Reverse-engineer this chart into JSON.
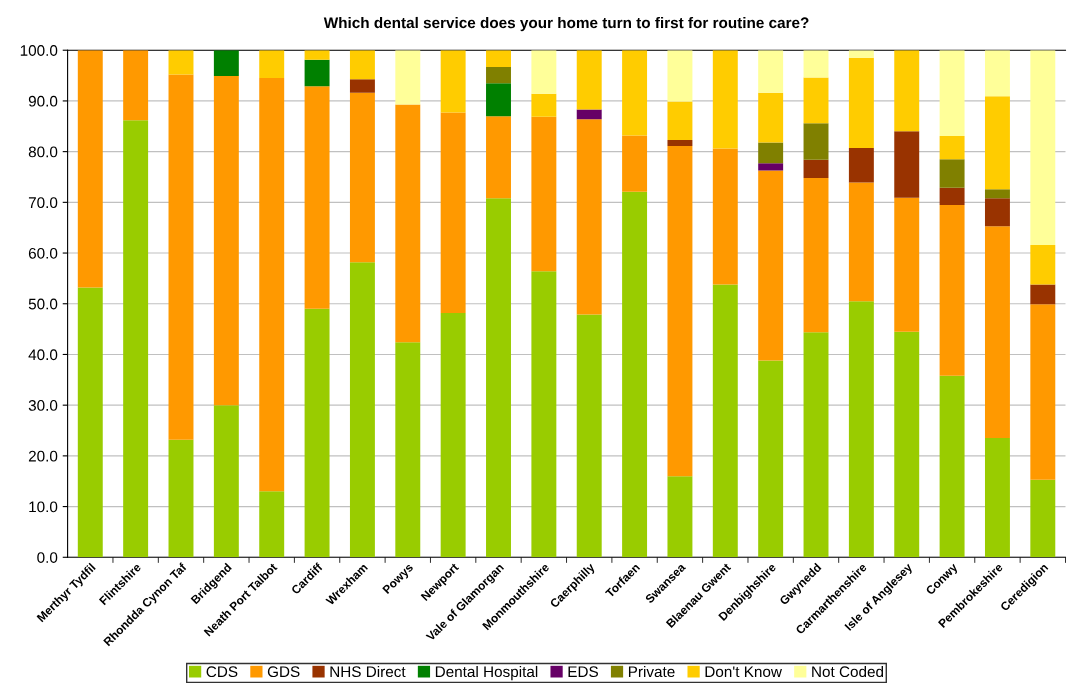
{
  "chart_data": {
    "type": "bar",
    "title": "Which dental service does your home turn to first for routine care?",
    "categories": [
      "Merthyr Tydfil",
      "Flintshire",
      "Rhondda Cynon Taf",
      "Bridgend",
      "Neath Port Talbot",
      "Cardiff",
      "Wrexham",
      "Powys",
      "Newport",
      "Vale of Glamorgan",
      "Monmouthshire",
      "Caerphilly",
      "Torfaen",
      "Swansea",
      "Blaenau Gwent",
      "Denbighshire",
      "Gwynedd",
      "Carmarthenshire",
      "Isle of Anglesey",
      "Conwy",
      "Pembrokeshire",
      "Ceredigion"
    ],
    "stacked": true,
    "series": [
      {
        "name": "CDS",
        "color": "#99cc00",
        "values": [
          53.2,
          86.2,
          23.2,
          30.0,
          13.0,
          49.0,
          58.2,
          42.4,
          48.2,
          70.8,
          56.4,
          47.9,
          72.1,
          16.0,
          53.8,
          38.8,
          44.4,
          50.5,
          44.5,
          35.8,
          23.5,
          15.3
        ]
      },
      {
        "name": "GDS",
        "color": "#ff9900",
        "values": [
          46.8,
          13.8,
          72.0,
          64.9,
          81.5,
          43.9,
          33.4,
          46.9,
          39.5,
          16.2,
          30.5,
          38.5,
          11.1,
          65.1,
          26.8,
          37.5,
          30.4,
          23.4,
          26.4,
          33.7,
          41.8,
          34.6
        ]
      },
      {
        "name": "NHS Direct",
        "color": "#993300",
        "values": [
          0,
          0,
          0,
          0,
          0,
          0,
          2.7,
          0,
          0,
          0,
          0,
          0,
          0,
          1.2,
          0,
          0,
          3.6,
          6.8,
          13.1,
          3.4,
          5.5,
          3.9
        ]
      },
      {
        "name": "Dental Hospital",
        "color": "#008000",
        "values": [
          0,
          0,
          0,
          5.1,
          0,
          5.2,
          0,
          0,
          0,
          6.5,
          0,
          0,
          0,
          0,
          0,
          0,
          0,
          0,
          0,
          0,
          0,
          0
        ]
      },
      {
        "name": "EDS",
        "color": "#660066",
        "values": [
          0,
          0,
          0,
          0,
          0,
          0,
          0,
          0,
          0,
          0,
          0,
          1.9,
          0,
          0,
          0,
          1.4,
          0,
          0,
          0,
          0,
          0,
          0
        ]
      },
      {
        "name": "Private",
        "color": "#808000",
        "values": [
          0,
          0,
          0,
          0,
          0,
          0,
          0,
          0,
          0,
          3.2,
          0,
          0,
          0,
          0,
          0,
          4.1,
          7.2,
          0,
          0,
          5.6,
          1.8,
          0
        ]
      },
      {
        "name": "Don't Know",
        "color": "#ffcc00",
        "values": [
          0,
          0,
          4.8,
          0,
          5.5,
          1.9,
          5.7,
          0,
          12.3,
          3.3,
          4.5,
          11.7,
          16.8,
          7.6,
          19.4,
          9.8,
          9.0,
          17.8,
          16.0,
          4.6,
          18.3,
          7.8
        ]
      },
      {
        "name": "Not Coded",
        "color": "#ffff99",
        "values": [
          0,
          0,
          0,
          0,
          0,
          0,
          0,
          10.7,
          0,
          0,
          8.6,
          0,
          0,
          10.1,
          0,
          8.4,
          5.4,
          1.5,
          0,
          16.9,
          9.1,
          38.4
        ]
      }
    ],
    "ylim": [
      0,
      100
    ],
    "yticks": [
      {
        "value": 0,
        "label": "0.0"
      },
      {
        "value": 10,
        "label": "10.0"
      },
      {
        "value": 20,
        "label": "20.0"
      },
      {
        "value": 30,
        "label": "30.0"
      },
      {
        "value": 40,
        "label": "40.0"
      },
      {
        "value": 50,
        "label": "50.0"
      },
      {
        "value": 60,
        "label": "60.0"
      },
      {
        "value": 70,
        "label": "70.0"
      },
      {
        "value": 80,
        "label": "80.0"
      },
      {
        "value": 90,
        "label": "90.0"
      },
      {
        "value": 100,
        "label": "100.0"
      }
    ],
    "grid": "y",
    "legend": "bottom"
  }
}
